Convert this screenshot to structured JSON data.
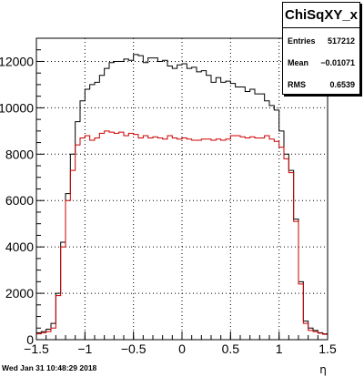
{
  "chart_data": {
    "type": "histogram",
    "title": "ChiSqXY_x",
    "xlabel": "η",
    "ylabel": "",
    "xlim": [
      -1.5,
      1.5
    ],
    "ylim": [
      0,
      13000
    ],
    "grid": true,
    "x_ticks": [
      -1.5,
      -1,
      -0.5,
      0,
      0.5,
      1,
      1.5
    ],
    "x_tick_labels": [
      "−1.5",
      "−1",
      "−0.5",
      "0",
      "0.5",
      "1",
      "1.5"
    ],
    "y_ticks": [
      0,
      2000,
      4000,
      6000,
      8000,
      10000,
      12000
    ],
    "y_tick_labels": [
      "0",
      "2000",
      "4000",
      "6000",
      "8000",
      "10000",
      "12000"
    ],
    "bin_width": 0.05,
    "bin_low_edges": [
      -1.5,
      -1.45,
      -1.4,
      -1.35,
      -1.3,
      -1.25,
      -1.2,
      -1.15,
      -1.1,
      -1.05,
      -1.0,
      -0.95,
      -0.9,
      -0.85,
      -0.8,
      -0.75,
      -0.7,
      -0.65,
      -0.6,
      -0.55,
      -0.5,
      -0.45,
      -0.4,
      -0.35,
      -0.3,
      -0.25,
      -0.2,
      -0.15,
      -0.1,
      -0.05,
      0.0,
      0.05,
      0.1,
      0.15,
      0.2,
      0.25,
      0.3,
      0.35,
      0.4,
      0.45,
      0.5,
      0.55,
      0.6,
      0.65,
      0.7,
      0.75,
      0.8,
      0.85,
      0.9,
      0.95,
      1.0,
      1.05,
      1.1,
      1.15,
      1.2,
      1.25,
      1.3,
      1.35,
      1.4,
      1.45
    ],
    "series": [
      {
        "name": "",
        "color": "#000000",
        "values": [
          300,
          350,
          450,
          700,
          2000,
          4200,
          6300,
          8000,
          9400,
          10300,
          10800,
          11000,
          11100,
          11400,
          11700,
          11950,
          12000,
          12000,
          12100,
          12050,
          12300,
          12250,
          11950,
          12150,
          12150,
          12000,
          12050,
          11800,
          11700,
          11850,
          11900,
          11700,
          11750,
          11550,
          11600,
          11400,
          11100,
          11300,
          11100,
          11150,
          11050,
          10900,
          10900,
          10700,
          10800,
          10600,
          10600,
          10300,
          10100,
          9900,
          9000,
          8000,
          7300,
          5200,
          2500,
          800,
          500,
          400,
          300,
          250
        ]
      },
      {
        "name": "",
        "color": "#cc0000",
        "values": [
          250,
          300,
          350,
          500,
          1900,
          4000,
          6000,
          7300,
          8400,
          8700,
          8800,
          8600,
          8700,
          8900,
          9000,
          8950,
          8900,
          8950,
          8800,
          8900,
          8850,
          8700,
          8800,
          8700,
          8750,
          8700,
          8650,
          8800,
          8700,
          8650,
          8700,
          8650,
          8600,
          8600,
          8650,
          8650,
          8600,
          8650,
          8600,
          8650,
          8800,
          8800,
          8750,
          8700,
          8750,
          8700,
          8700,
          8800,
          8650,
          8550,
          8300,
          7800,
          7200,
          5100,
          2400,
          700,
          400,
          350,
          280,
          230
        ]
      }
    ]
  },
  "stats": {
    "title": "ChiSqXY_x",
    "rows": [
      {
        "label": "Entries",
        "value": "517212"
      },
      {
        "label": "Mean",
        "value": "−0.01071"
      },
      {
        "label": "RMS",
        "value": "0.6539"
      }
    ]
  },
  "footer": {
    "date": "Wed Jan 31 10:48:29 2018"
  }
}
